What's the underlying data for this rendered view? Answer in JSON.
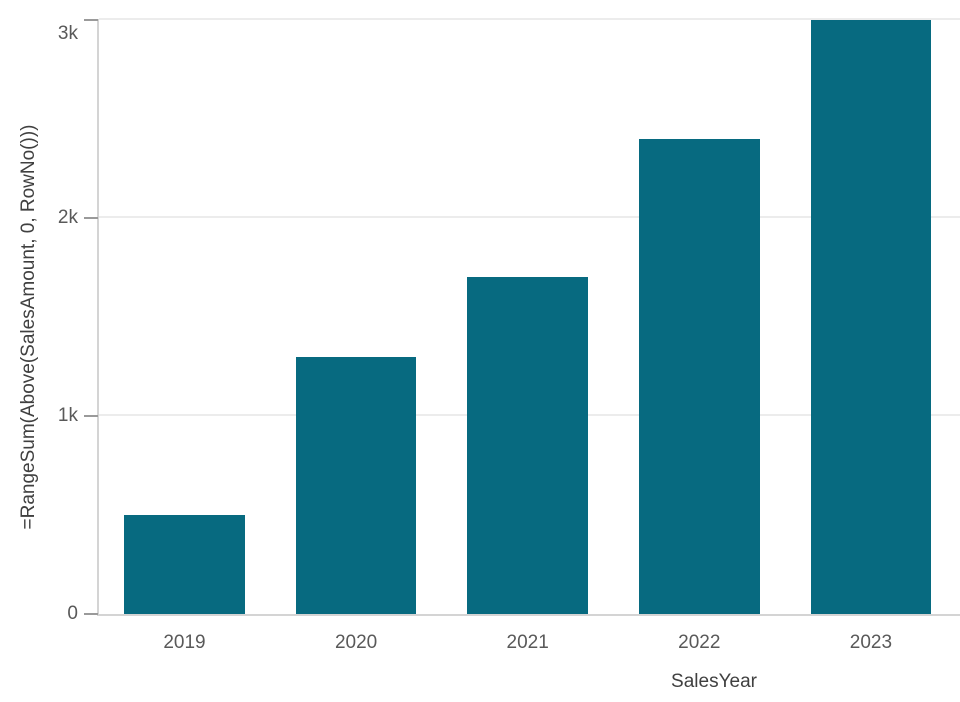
{
  "chart_data": {
    "type": "bar",
    "title": "",
    "categories": [
      "2019",
      "2020",
      "2021",
      "2022",
      "2023"
    ],
    "values": [
      500,
      1300,
      1700,
      2400,
      3000
    ],
    "series_name": "=RangeSum(Above(SalesAmount, 0, RowNo()))",
    "xlabel": "SalesYear",
    "ylabel": "=RangeSum(Above(SalesAmount, 0, RowNo()))",
    "ylim": [
      0,
      3000
    ],
    "yticks": [
      {
        "value": 0,
        "label": "0"
      },
      {
        "value": 1000,
        "label": "1k"
      },
      {
        "value": 2000,
        "label": "2k"
      },
      {
        "value": 3000,
        "label": "3k"
      }
    ],
    "grid": "horizontal-only",
    "legend": "none",
    "colors": {
      "bar": "#076a80",
      "gridline": "#ececec",
      "axis_line": "#d4d4d4",
      "tick_mark": "#9a9a9a",
      "tick_label": "#595959",
      "axis_title": "#404040",
      "background": "#ffffff"
    }
  }
}
